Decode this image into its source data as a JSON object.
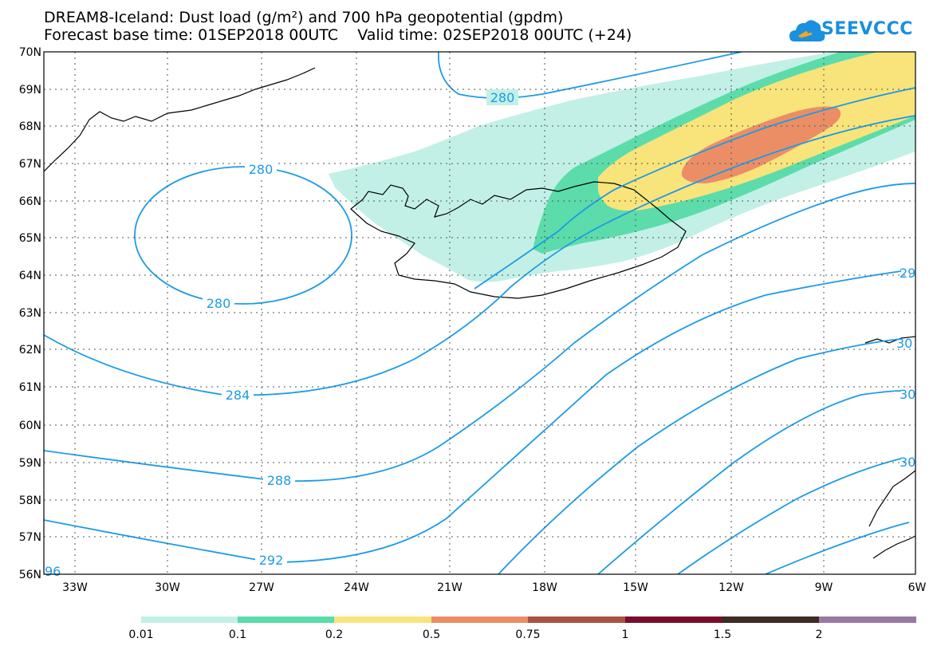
{
  "title_line1": "DREAM8-Iceland: Dust load (g/m²) and 700 hPa geopotential (gpdm)",
  "title_line2": "Forecast base time: 01SEP2018 00UTC    Valid time: 02SEP2018 00UTC (+24)",
  "logo_text": "SEEVCCC",
  "lat_labels": [
    "70N",
    "69N",
    "68N",
    "67N",
    "66N",
    "65N",
    "64N",
    "63N",
    "62N",
    "61N",
    "60N",
    "59N",
    "58N",
    "57N",
    "56N"
  ],
  "lon_labels": [
    "33W",
    "30W",
    "27W",
    "24W",
    "21W",
    "18W",
    "15W",
    "12W",
    "9W",
    "6W"
  ],
  "contour_labels": [
    "280",
    "280",
    "280",
    "284",
    "288",
    "292",
    "96",
    "29",
    "30",
    "30",
    "30"
  ],
  "colorbar": {
    "labels": [
      "0.01",
      "0.1",
      "0.2",
      "0.5",
      "0.75",
      "1",
      "1.5",
      "2"
    ],
    "colors": [
      "#c2f0e6",
      "#5cdcaa",
      "#f8e47a",
      "#eb8e66",
      "#a85244",
      "#7a0e2e",
      "#3e2b21",
      "#9a78a6"
    ]
  },
  "colors": {
    "contour": "#1d9be6",
    "dust_001": "#c2f0e6",
    "dust_01": "#5cdcaa",
    "dust_02": "#f8e47a",
    "dust_05": "#eb8e66"
  }
}
